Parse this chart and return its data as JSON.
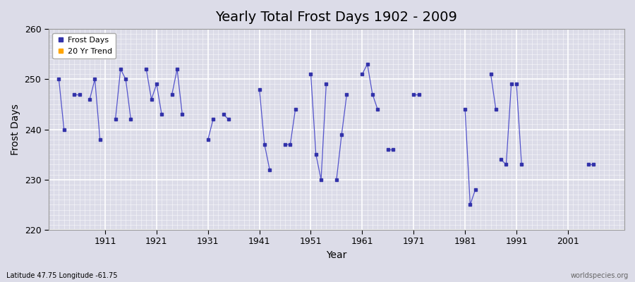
{
  "title": "Yearly Total Frost Days 1902 - 2009",
  "xlabel": "Year",
  "ylabel": "Frost Days",
  "ylim": [
    220,
    260
  ],
  "xlim": [
    1900,
    2012
  ],
  "xticks": [
    1911,
    1921,
    1931,
    1941,
    1951,
    1961,
    1971,
    1981,
    1991,
    2001
  ],
  "yticks": [
    220,
    230,
    240,
    250,
    260
  ],
  "line_color": "#5555cc",
  "marker_color": "#3333aa",
  "legend_frost_color": "#3333aa",
  "legend_trend_color": "#FFA500",
  "background_color": "#dcdce8",
  "grid_major_color": "#ffffff",
  "grid_minor_color": "#e8e8f0",
  "title_fontsize": 14,
  "bottom_left_text": "Latitude 47.75 Longitude -61.75",
  "bottom_right_text": "worldspecies.org",
  "segments": [
    {
      "years": [
        1902,
        1903
      ],
      "values": [
        250,
        240
      ]
    },
    {
      "years": [
        1905,
        1906
      ],
      "values": [
        247,
        247
      ]
    },
    {
      "years": [
        1908,
        1909,
        1910
      ],
      "values": [
        246,
        250,
        238
      ]
    },
    {
      "years": [
        1913,
        1914,
        1915,
        1916
      ],
      "values": [
        242,
        252,
        250,
        242
      ]
    },
    {
      "years": [
        1919,
        1920,
        1921,
        1922
      ],
      "values": [
        252,
        246,
        249,
        243
      ]
    },
    {
      "years": [
        1924,
        1925,
        1926
      ],
      "values": [
        247,
        252,
        243
      ]
    },
    {
      "years": [
        1931,
        1932
      ],
      "values": [
        238,
        242
      ]
    },
    {
      "years": [
        1934,
        1935
      ],
      "values": [
        243,
        242
      ]
    },
    {
      "years": [
        1941,
        1942,
        1943
      ],
      "values": [
        248,
        237,
        232
      ]
    },
    {
      "years": [
        1946,
        1947,
        1948
      ],
      "values": [
        237,
        237,
        244
      ]
    },
    {
      "years": [
        1951,
        1952,
        1953,
        1954
      ],
      "values": [
        251,
        235,
        230,
        249
      ]
    },
    {
      "years": [
        1956,
        1957,
        1958
      ],
      "values": [
        230,
        239,
        247
      ]
    },
    {
      "years": [
        1961,
        1962,
        1963,
        1964
      ],
      "values": [
        251,
        253,
        247,
        244
      ]
    },
    {
      "years": [
        1966,
        1967
      ],
      "values": [
        236,
        236
      ]
    },
    {
      "years": [
        1971,
        1972
      ],
      "values": [
        247,
        247
      ]
    },
    {
      "years": [
        1981,
        1982,
        1983
      ],
      "values": [
        244,
        225,
        228
      ]
    },
    {
      "years": [
        1986,
        1987
      ],
      "values": [
        251,
        244
      ]
    },
    {
      "years": [
        1988,
        1989,
        1990
      ],
      "values": [
        234,
        233,
        249
      ]
    },
    {
      "years": [
        1991,
        1992
      ],
      "values": [
        249,
        233
      ]
    },
    {
      "years": [
        2005,
        2006
      ],
      "values": [
        233,
        233
      ]
    }
  ]
}
